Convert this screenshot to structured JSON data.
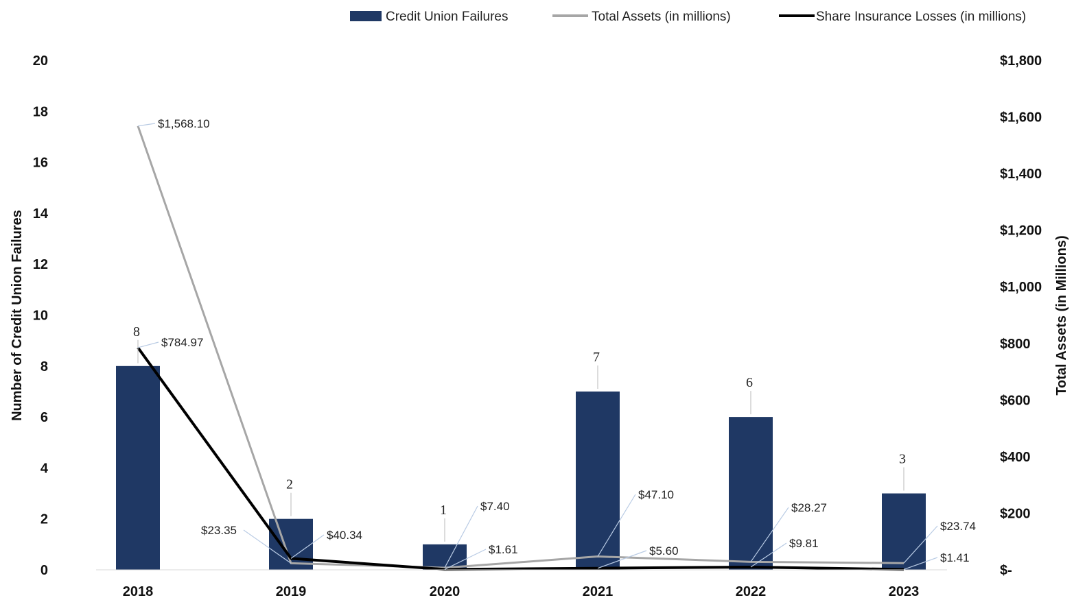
{
  "chart_data": {
    "type": "bar",
    "categories": [
      "2018",
      "2019",
      "2020",
      "2021",
      "2022",
      "2023"
    ],
    "series": [
      {
        "name": "Credit Union Failures",
        "kind": "bar",
        "axis": "left",
        "color": "#1f3864",
        "values": [
          8,
          2,
          1,
          7,
          6,
          3
        ],
        "labels": [
          "8",
          "2",
          "1",
          "7",
          "6",
          "3"
        ]
      },
      {
        "name": "Total Assets (in millions)",
        "kind": "line",
        "axis": "right",
        "color": "#a6a6a6",
        "values": [
          1568.1,
          23.35,
          7.4,
          47.1,
          28.27,
          23.74
        ],
        "labels": [
          "$1,568.10",
          "$23.35",
          "$7.40",
          "$47.10",
          "$28.27",
          "$23.74"
        ]
      },
      {
        "name": "Share Insurance Losses (in millions)",
        "kind": "line",
        "axis": "right",
        "color": "#000000",
        "values": [
          784.97,
          40.34,
          1.61,
          5.6,
          9.81,
          1.41
        ],
        "labels": [
          "$784.97",
          "$40.34",
          "$1.61",
          "$5.60",
          "$9.81",
          "$1.41"
        ]
      }
    ],
    "y_left": {
      "label": "Number of Credit Union Failures",
      "lim": [
        0,
        20
      ],
      "ticks": [
        0,
        2,
        4,
        6,
        8,
        10,
        12,
        14,
        16,
        18,
        20
      ],
      "tick_labels": [
        "0",
        "2",
        "4",
        "6",
        "8",
        "10",
        "12",
        "14",
        "16",
        "18",
        "20"
      ]
    },
    "y_right": {
      "label": "Total Assets (in Millions)",
      "lim": [
        0,
        1800
      ],
      "ticks": [
        0,
        200,
        400,
        600,
        800,
        1000,
        1200,
        1400,
        1600,
        1800
      ],
      "tick_labels": [
        "$-",
        "$200",
        "$400",
        "$600",
        "$800",
        "$1,000",
        "$1,200",
        "$1,400",
        "$1,600",
        "$1,800"
      ]
    },
    "legend": "top-right",
    "grid": false
  }
}
